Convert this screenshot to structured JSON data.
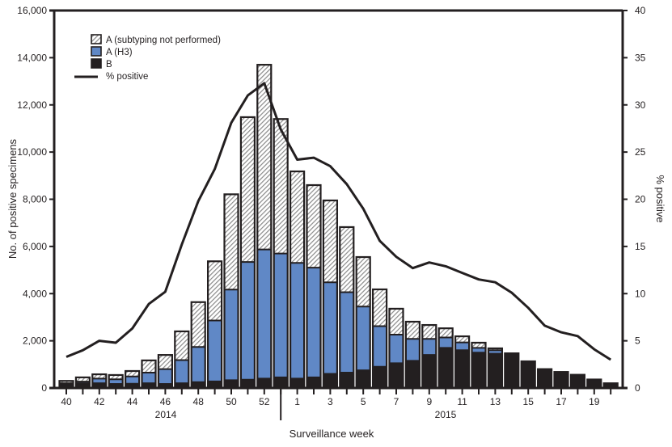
{
  "chart_data": {
    "type": "bar",
    "stacked": true,
    "title": "",
    "xlabel": "Surveillance week",
    "ylabel": "No. of positive specimens",
    "y2label": "% positive",
    "ylim": [
      0,
      16000
    ],
    "y2lim": [
      0,
      40
    ],
    "yticks": [
      0,
      2000,
      4000,
      6000,
      8000,
      10000,
      12000,
      14000,
      16000
    ],
    "ytick_labels": [
      "0",
      "2,000",
      "4,000",
      "6,000",
      "8,000",
      "10,000",
      "12,000",
      "14,000",
      "16,000"
    ],
    "y2ticks": [
      0,
      5,
      10,
      15,
      20,
      25,
      30,
      35,
      40
    ],
    "y2tick_labels": [
      "0",
      "5",
      "10",
      "15",
      "20",
      "25",
      "30",
      "35",
      "40"
    ],
    "grid": false,
    "legend_position": "top-left",
    "categories": [
      "40",
      "41",
      "42",
      "43",
      "44",
      "45",
      "46",
      "47",
      "48",
      "49",
      "50",
      "51",
      "52",
      "53",
      "1",
      "2",
      "3",
      "4",
      "5",
      "6",
      "7",
      "8",
      "9",
      "10",
      "11",
      "12",
      "13",
      "14",
      "15",
      "16",
      "17",
      "18",
      "19",
      "20"
    ],
    "x_tick_labels_shown": [
      "40",
      "42",
      "44",
      "46",
      "48",
      "50",
      "52",
      "1",
      "3",
      "5",
      "7",
      "9",
      "11",
      "13",
      "15",
      "17",
      "19"
    ],
    "year_groups": [
      {
        "label": "2014",
        "first": "40",
        "last": "53"
      },
      {
        "label": "2015",
        "first": "1",
        "last": "20"
      }
    ],
    "series": [
      {
        "name": "B",
        "kind": "bar",
        "color": "#231f20",
        "values": [
          150,
          200,
          200,
          170,
          180,
          200,
          170,
          200,
          250,
          280,
          330,
          350,
          400,
          450,
          400,
          450,
          600,
          650,
          750,
          900,
          1050,
          1150,
          1400,
          1700,
          1600,
          1500,
          1450,
          1420,
          1130,
          800,
          680,
          560,
          360,
          200
        ]
      },
      {
        "name": "A (H3)",
        "kind": "bar",
        "color": "#6088c6",
        "values": [
          50,
          70,
          200,
          200,
          310,
          450,
          630,
          980,
          1490,
          2580,
          3840,
          4990,
          5470,
          5250,
          4900,
          4650,
          3880,
          3410,
          2700,
          1720,
          1210,
          930,
          680,
          440,
          330,
          200,
          150,
          20,
          0,
          0,
          0,
          0,
          0,
          0
        ]
      },
      {
        "name": "A (subtyping not performed)",
        "kind": "bar",
        "pattern": "hatched",
        "color": "#9a9a9a",
        "values": [
          100,
          180,
          180,
          180,
          230,
          520,
          600,
          1220,
          1900,
          2510,
          4040,
          6140,
          7830,
          5700,
          3880,
          3500,
          3470,
          2760,
          2100,
          1560,
          1100,
          730,
          590,
          390,
          260,
          220,
          80,
          30,
          0,
          0,
          0,
          0,
          0,
          0
        ]
      },
      {
        "name": "% positive",
        "kind": "line",
        "axis": "y2",
        "color": "#231f20",
        "values": [
          3.3,
          4.0,
          5.0,
          4.8,
          6.3,
          8.9,
          10.2,
          15.2,
          19.8,
          23.2,
          28.1,
          31.0,
          32.3,
          27.4,
          24.2,
          24.4,
          23.5,
          21.6,
          19.0,
          15.6,
          13.9,
          12.7,
          13.3,
          12.9,
          12.2,
          11.5,
          11.2,
          10.1,
          8.5,
          6.6,
          5.9,
          5.5,
          4.1,
          3.0
        ]
      }
    ],
    "legend": [
      {
        "label": "A (subtyping not performed)",
        "swatch": "hatched"
      },
      {
        "label": "A (H3)",
        "swatch": "blue"
      },
      {
        "label": "B",
        "swatch": "black"
      },
      {
        "label": "% positive",
        "swatch": "line"
      }
    ]
  }
}
